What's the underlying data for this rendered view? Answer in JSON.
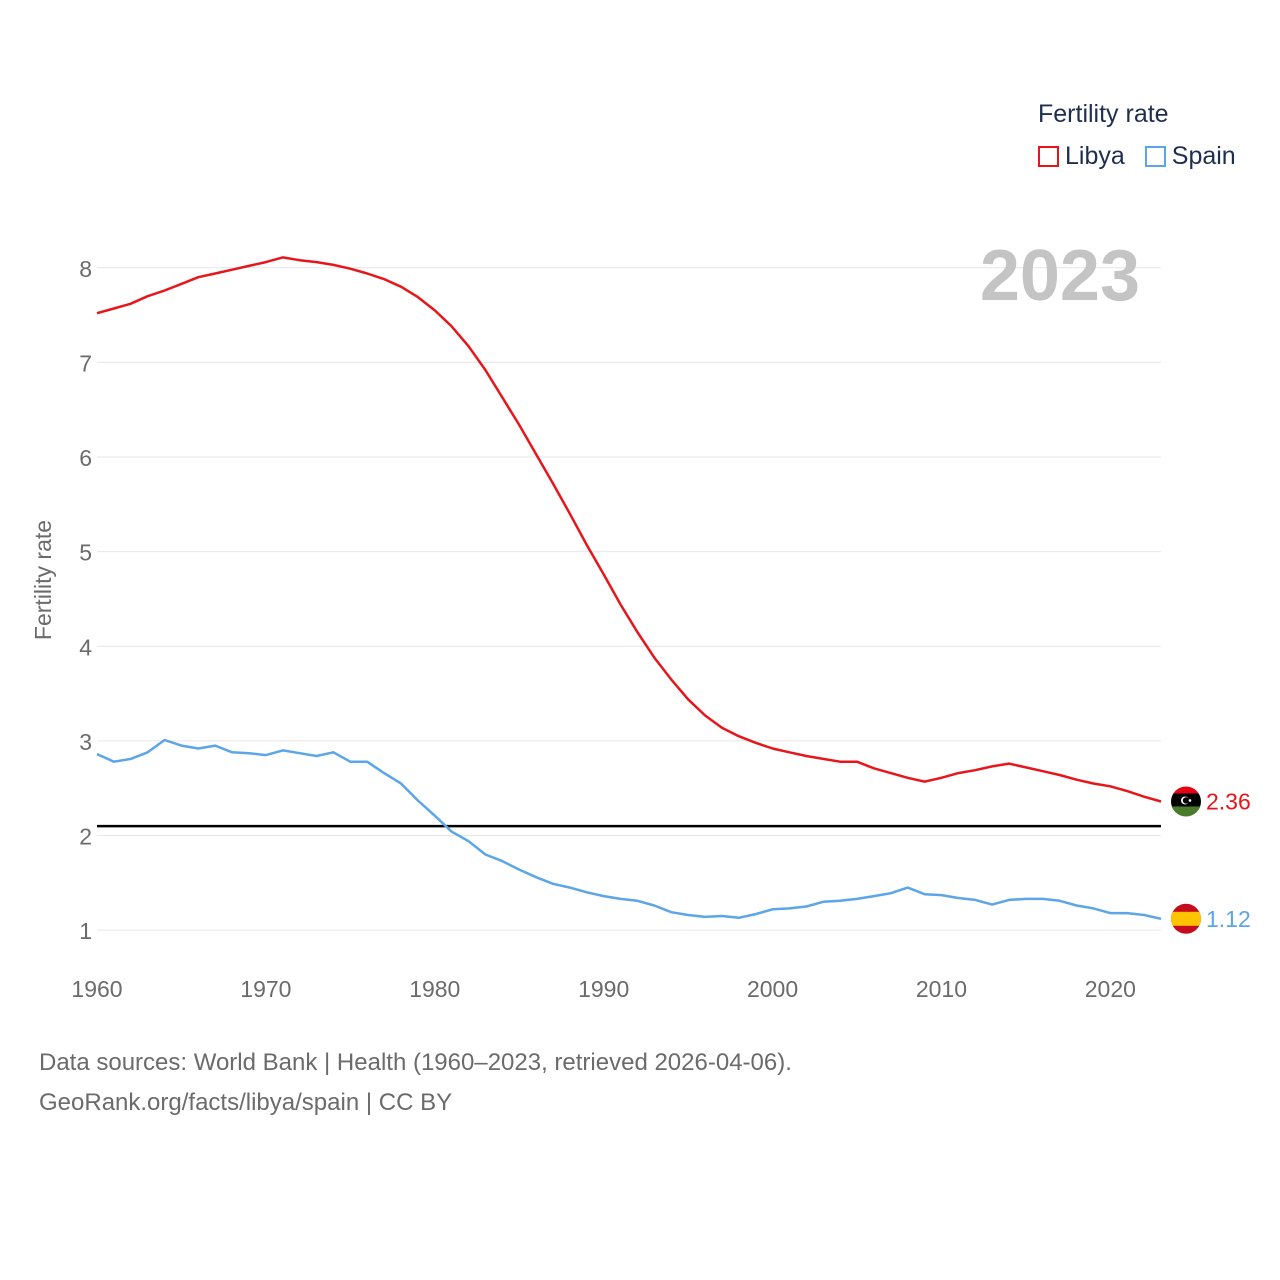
{
  "chart_data": {
    "type": "line",
    "ylabel": "Fertility rate",
    "xlabel": "",
    "year_label": "2023",
    "xlim": [
      1960,
      2023
    ],
    "ylim": [
      0.6,
      8.6
    ],
    "x_ticks": [
      1960,
      1970,
      1980,
      1990,
      2000,
      2010,
      2020
    ],
    "y_ticks": [
      1,
      2,
      3,
      4,
      5,
      6,
      7,
      8
    ],
    "reference_line": 2.1,
    "legend": {
      "title": "Fertility rate",
      "placement": "top-right"
    },
    "series": [
      {
        "name": "Libya",
        "color": "#e8151b",
        "end_label": "2.36",
        "flag": "libya-flag",
        "x": [
          1960,
          1961,
          1962,
          1963,
          1964,
          1965,
          1966,
          1967,
          1968,
          1969,
          1970,
          1971,
          1972,
          1973,
          1974,
          1975,
          1976,
          1977,
          1978,
          1979,
          1980,
          1981,
          1982,
          1983,
          1984,
          1985,
          1986,
          1987,
          1988,
          1989,
          1990,
          1991,
          1992,
          1993,
          1994,
          1995,
          1996,
          1997,
          1998,
          1999,
          2000,
          2001,
          2002,
          2003,
          2004,
          2005,
          2006,
          2007,
          2008,
          2009,
          2010,
          2011,
          2012,
          2013,
          2014,
          2015,
          2016,
          2017,
          2018,
          2019,
          2020,
          2021,
          2022,
          2023
        ],
        "values": [
          7.52,
          7.57,
          7.62,
          7.7,
          7.76,
          7.83,
          7.9,
          7.94,
          7.98,
          8.02,
          8.06,
          8.11,
          8.08,
          8.06,
          8.03,
          7.99,
          7.94,
          7.88,
          7.8,
          7.69,
          7.55,
          7.38,
          7.17,
          6.92,
          6.63,
          6.34,
          6.03,
          5.72,
          5.4,
          5.07,
          4.76,
          4.44,
          4.15,
          3.88,
          3.65,
          3.44,
          3.27,
          3.14,
          3.05,
          2.98,
          2.92,
          2.88,
          2.84,
          2.81,
          2.78,
          2.78,
          2.71,
          2.66,
          2.61,
          2.57,
          2.61,
          2.66,
          2.69,
          2.73,
          2.76,
          2.72,
          2.68,
          2.64,
          2.59,
          2.55,
          2.52,
          2.47,
          2.41,
          2.36
        ]
      },
      {
        "name": "Spain",
        "color": "#5ba5e8",
        "end_label": "1.12",
        "flag": "spain-flag",
        "x": [
          1960,
          1961,
          1962,
          1963,
          1964,
          1965,
          1966,
          1967,
          1968,
          1969,
          1970,
          1971,
          1972,
          1973,
          1974,
          1975,
          1976,
          1977,
          1978,
          1979,
          1980,
          1981,
          1982,
          1983,
          1984,
          1985,
          1986,
          1987,
          1988,
          1989,
          1990,
          1991,
          1992,
          1993,
          1994,
          1995,
          1996,
          1997,
          1998,
          1999,
          2000,
          2001,
          2002,
          2003,
          2004,
          2005,
          2006,
          2007,
          2008,
          2009,
          2010,
          2011,
          2012,
          2013,
          2014,
          2015,
          2016,
          2017,
          2018,
          2019,
          2020,
          2021,
          2022,
          2023
        ],
        "values": [
          2.86,
          2.78,
          2.81,
          2.88,
          3.01,
          2.95,
          2.92,
          2.95,
          2.88,
          2.87,
          2.85,
          2.9,
          2.87,
          2.84,
          2.88,
          2.78,
          2.78,
          2.66,
          2.55,
          2.37,
          2.21,
          2.04,
          1.94,
          1.8,
          1.73,
          1.64,
          1.56,
          1.49,
          1.45,
          1.4,
          1.36,
          1.33,
          1.31,
          1.26,
          1.19,
          1.16,
          1.14,
          1.15,
          1.13,
          1.17,
          1.22,
          1.23,
          1.25,
          1.3,
          1.31,
          1.33,
          1.36,
          1.39,
          1.45,
          1.38,
          1.37,
          1.34,
          1.32,
          1.27,
          1.32,
          1.33,
          1.33,
          1.31,
          1.26,
          1.23,
          1.18,
          1.18,
          1.16,
          1.12
        ]
      }
    ]
  },
  "footer": {
    "line1": "Data sources: World Bank | Health (1960–2023, retrieved 2026-04-06).",
    "line2": "GeoRank.org/facts/libya/spain | CC BY"
  }
}
